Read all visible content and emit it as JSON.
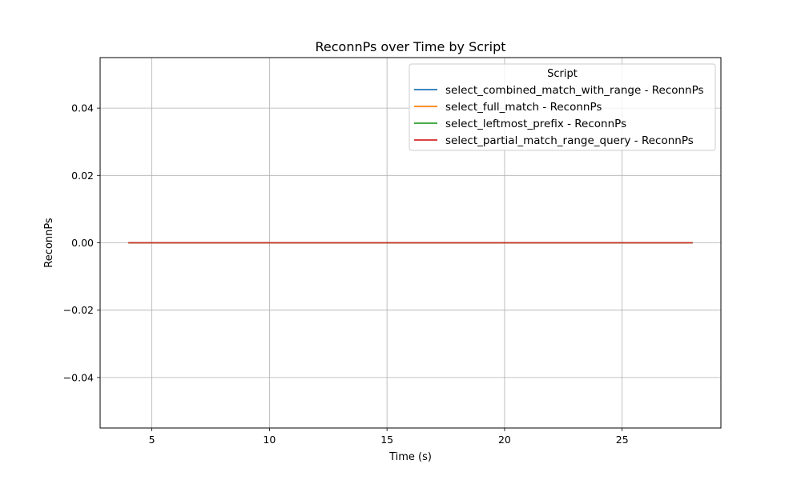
{
  "chart_data": {
    "type": "line",
    "title": "ReconnPs over Time by Script",
    "xlabel": "Time (s)",
    "ylabel": "ReconnPs",
    "xlim": [
      2.8,
      29.2
    ],
    "ylim": [
      -0.055,
      0.055
    ],
    "xticks": [
      5,
      10,
      15,
      20,
      25
    ],
    "yticks": [
      -0.04,
      -0.02,
      0.0,
      0.02,
      0.04
    ],
    "xtick_labels": [
      "5",
      "10",
      "15",
      "20",
      "25"
    ],
    "ytick_labels": [
      "−0.04",
      "−0.02",
      "0.00",
      "0.02",
      "0.04"
    ],
    "grid": true,
    "legend": {
      "title": "Script",
      "placement": "top-right"
    },
    "x": [
      4,
      28
    ],
    "series": [
      {
        "name": "select_combined_match_with_range - ReconnPs",
        "color": "#1f77b4",
        "values": [
          0,
          0
        ]
      },
      {
        "name": "select_full_match - ReconnPs",
        "color": "#ff7f0e",
        "values": [
          0,
          0
        ]
      },
      {
        "name": "select_leftmost_prefix - ReconnPs",
        "color": "#2ca02c",
        "values": [
          0,
          0
        ]
      },
      {
        "name": "select_partial_match_range_query - ReconnPs",
        "color": "#d62728",
        "values": [
          0,
          0
        ]
      }
    ]
  }
}
